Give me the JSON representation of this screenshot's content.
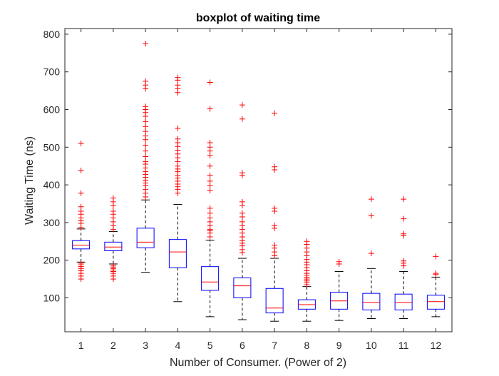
{
  "chart_data": {
    "type": "boxplot",
    "title": "boxplot of waiting time",
    "xlabel": "Number of Consumer. (Power of 2)",
    "ylabel": "Waiting Time (ns)",
    "ylim": [
      10,
      815
    ],
    "yticks": [
      100,
      200,
      300,
      400,
      500,
      600,
      700,
      800
    ],
    "categories": [
      "1",
      "2",
      "3",
      "4",
      "5",
      "6",
      "7",
      "8",
      "9",
      "10",
      "11",
      "12"
    ],
    "grid": false,
    "colors": {
      "box": "#0000ff",
      "median": "#ff0000",
      "whisker": "#000000",
      "outlier": "#ff0000"
    },
    "boxes": [
      {
        "whisker_low": 195,
        "q1": 230,
        "median": 240,
        "q3": 252,
        "whisker_high": 283,
        "outliers": [
          150,
          158,
          165,
          172,
          178,
          183,
          188,
          192,
          287,
          298,
          305,
          312,
          322,
          330,
          342,
          378,
          438,
          510
        ]
      },
      {
        "whisker_low": 190,
        "q1": 225,
        "median": 235,
        "q3": 248,
        "whisker_high": 276,
        "outliers": [
          150,
          158,
          165,
          170,
          174,
          178,
          182,
          186,
          282,
          292,
          302,
          312,
          322,
          330,
          345,
          355,
          365
        ]
      },
      {
        "whisker_low": 168,
        "q1": 233,
        "median": 248,
        "q3": 285,
        "whisker_high": 360,
        "outliers": [
          368,
          378,
          388,
          398,
          405,
          412,
          420,
          428,
          435,
          445,
          455,
          462,
          475,
          490,
          505,
          520,
          530,
          542,
          555,
          568,
          582,
          592,
          600,
          608,
          655,
          665,
          675,
          775
        ]
      },
      {
        "whisker_low": 90,
        "q1": 180,
        "median": 222,
        "q3": 255,
        "whisker_high": 348,
        "outliers": [
          378,
          388,
          395,
          402,
          410,
          418,
          425,
          435,
          442,
          450,
          462,
          472,
          482,
          492,
          502,
          512,
          522,
          550,
          645,
          655,
          665,
          678,
          685
        ]
      },
      {
        "whisker_low": 50,
        "q1": 120,
        "median": 142,
        "q3": 183,
        "whisker_high": 253,
        "outliers": [
          262,
          272,
          278,
          282,
          292,
          302,
          312,
          325,
          338,
          385,
          398,
          410,
          425,
          450,
          478,
          490,
          500,
          512,
          602,
          672
        ]
      },
      {
        "whisker_low": 42,
        "q1": 100,
        "median": 132,
        "q3": 153,
        "whisker_high": 205,
        "outliers": [
          220,
          228,
          238,
          245,
          252,
          262,
          272,
          282,
          292,
          302,
          315,
          325,
          345,
          355,
          425,
          432,
          575,
          612
        ]
      },
      {
        "whisker_low": 38,
        "q1": 60,
        "median": 73,
        "q3": 125,
        "whisker_high": 205,
        "outliers": [
          212,
          222,
          232,
          240,
          285,
          292,
          330,
          338,
          440,
          448,
          590
        ]
      },
      {
        "whisker_low": 38,
        "q1": 70,
        "median": 82,
        "q3": 95,
        "whisker_high": 130,
        "outliers": [
          135,
          140,
          145,
          150,
          155,
          160,
          165,
          172,
          180,
          188,
          195,
          202,
          212,
          222,
          232,
          242,
          250
        ]
      },
      {
        "whisker_low": 40,
        "q1": 70,
        "median": 92,
        "q3": 115,
        "whisker_high": 170,
        "outliers": [
          190,
          196
        ]
      },
      {
        "whisker_low": 45,
        "q1": 68,
        "median": 88,
        "q3": 112,
        "whisker_high": 178,
        "outliers": [
          218,
          318,
          362
        ]
      },
      {
        "whisker_low": 45,
        "q1": 68,
        "median": 88,
        "q3": 110,
        "whisker_high": 170,
        "outliers": [
          185,
          192,
          198,
          265,
          270,
          310,
          362
        ]
      },
      {
        "whisker_low": 50,
        "q1": 70,
        "median": 90,
        "q3": 107,
        "whisker_high": 155,
        "outliers": [
          162,
          165,
          210
        ]
      }
    ]
  }
}
